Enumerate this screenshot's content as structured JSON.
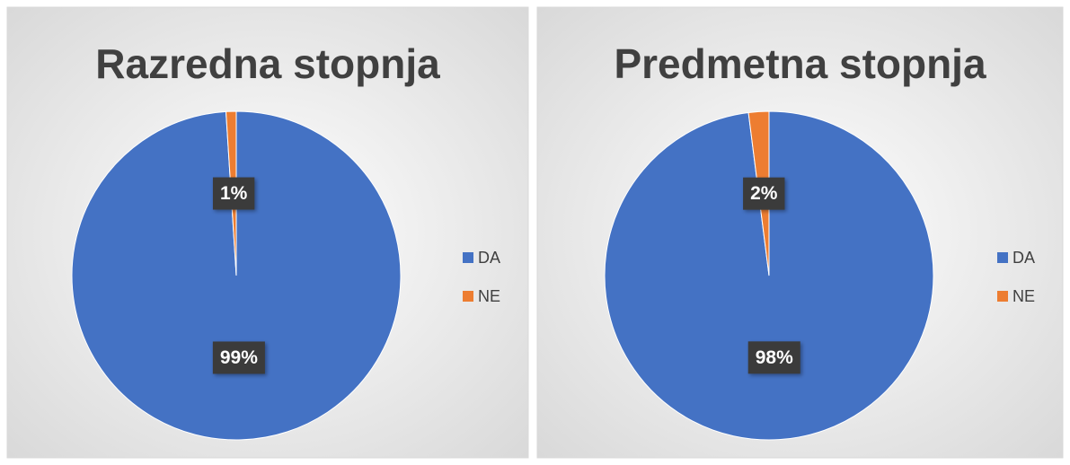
{
  "chart_data": [
    {
      "type": "pie",
      "title": "Razredna stopnja",
      "categories": [
        "DA",
        "NE"
      ],
      "values": [
        99,
        1
      ],
      "value_labels": [
        "99%",
        "1%"
      ],
      "colors": [
        "#4472c4",
        "#ed7d31"
      ],
      "legend": "right"
    },
    {
      "type": "pie",
      "title": "Predmetna stopnja",
      "categories": [
        "DA",
        "NE"
      ],
      "values": [
        98,
        2
      ],
      "value_labels": [
        "98%",
        "2%"
      ],
      "colors": [
        "#4472c4",
        "#ed7d31"
      ],
      "legend": "right"
    }
  ]
}
